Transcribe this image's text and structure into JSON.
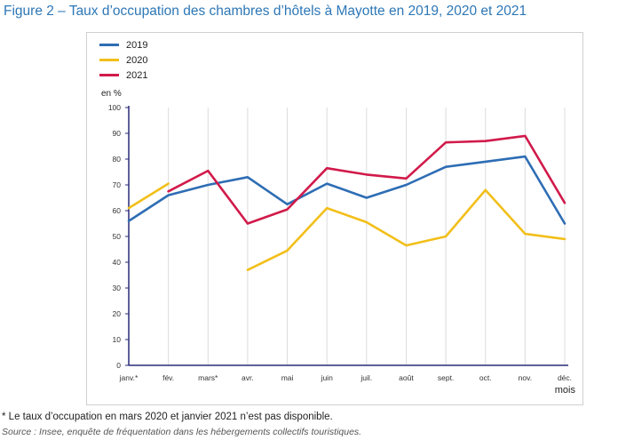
{
  "title": "Figure 2 – Taux d’occupation des chambres d’hôtels à Mayotte en 2019, 2020 et 2021",
  "footnote": "* Le taux d’occupation en mars 2020 et janvier 2021 n’est pas disponible.",
  "source": "Source : Insee, enquête de fréquentation dans les hébergements collectifs touristiques.",
  "chart_data": {
    "type": "line",
    "ylabel": "en %",
    "xlabel": "mois",
    "ylim": [
      0,
      100
    ],
    "yticks": [
      0,
      10,
      20,
      30,
      40,
      50,
      60,
      70,
      80,
      90,
      100
    ],
    "categories": [
      "janv.*",
      "fév.",
      "mars*",
      "avr.",
      "mai",
      "juin",
      "juil.",
      "août",
      "sept.",
      "oct.",
      "nov.",
      "déc."
    ],
    "grid": "vertical",
    "legend_position": "top-left",
    "series": [
      {
        "name": "2019",
        "color": "#2e6db4",
        "values": [
          56,
          66,
          70,
          73,
          62.5,
          70.5,
          65,
          70,
          77,
          79,
          81,
          55
        ]
      },
      {
        "name": "2020",
        "color": "#f2bf1a",
        "values": [
          61,
          70.5,
          null,
          37,
          44.5,
          61,
          55.5,
          46.5,
          50,
          68,
          51,
          49
        ]
      },
      {
        "name": "2021",
        "color": "#d11a4a",
        "values": [
          null,
          67.5,
          75.5,
          55,
          60.5,
          76.5,
          74,
          72.5,
          86.5,
          87,
          89,
          63
        ]
      }
    ]
  }
}
